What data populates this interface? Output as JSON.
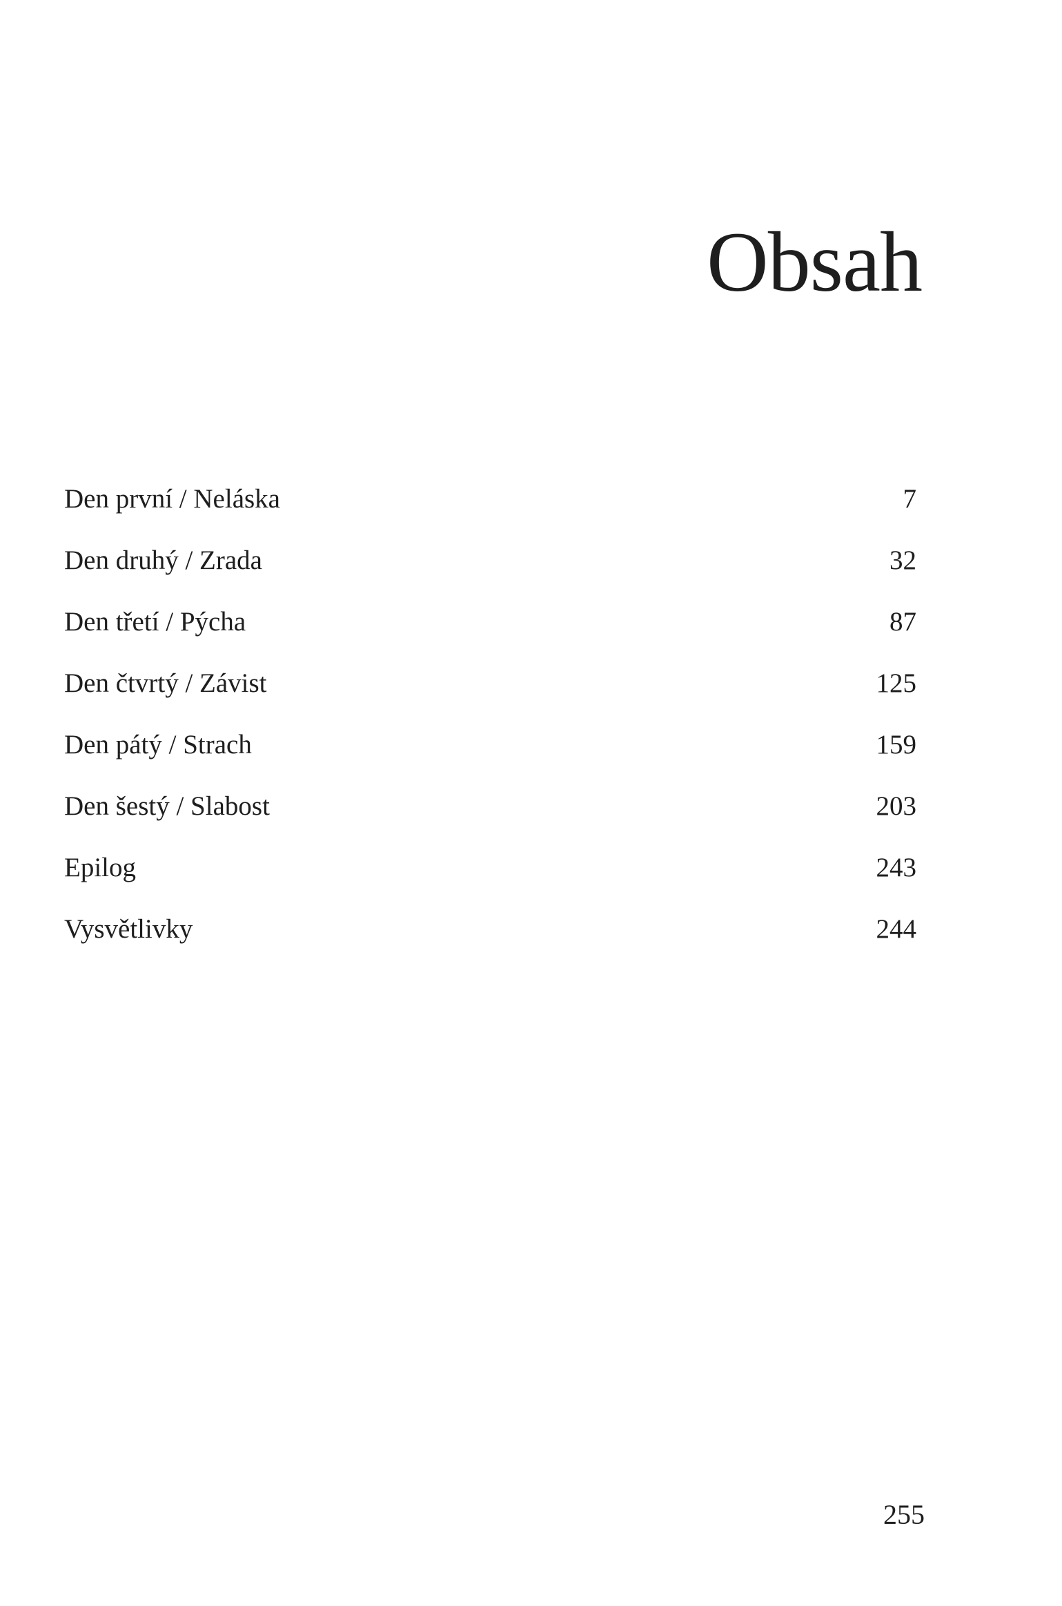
{
  "title": "Obsah",
  "entries": [
    {
      "label": "Den první / Neláska",
      "page": "7"
    },
    {
      "label": "Den druhý / Zrada",
      "page": "32"
    },
    {
      "label": "Den třetí / Pýcha",
      "page": "87"
    },
    {
      "label": "Den čtvrtý / Závist",
      "page": "125"
    },
    {
      "label": "Den pátý / Strach",
      "page": "159"
    },
    {
      "label": "Den šestý / Slabost",
      "page": "203"
    },
    {
      "label": "Epilog",
      "page": "243"
    },
    {
      "label": "Vysvětlivky",
      "page": "244"
    }
  ],
  "page_number": "255"
}
